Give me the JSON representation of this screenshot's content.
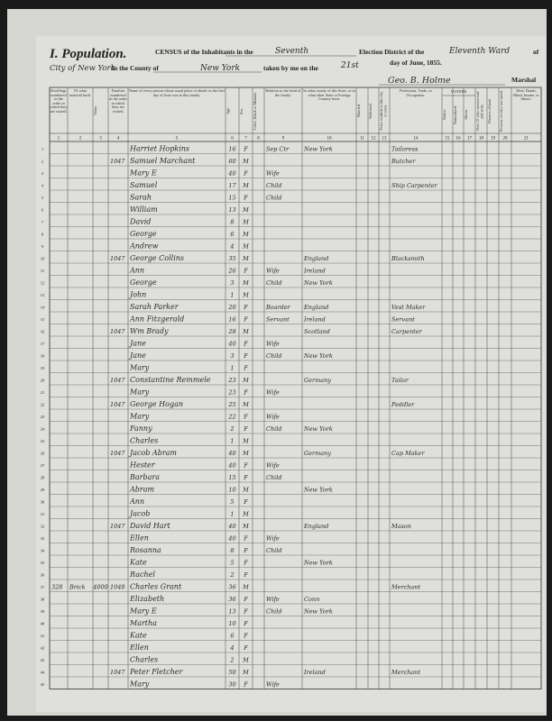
{
  "header": {
    "title": "I. Population.",
    "census_label": "CENSUS of the Inhabitants in the",
    "district": "Seventh",
    "district_label": "Election District of the",
    "ward": "Eleventh Ward",
    "of": "of",
    "city": "City of New York",
    "county_label": "in the County of",
    "county": "New York",
    "taken_label": "taken by me on the",
    "date_day": "21st",
    "date_label": "day of June, 1855.",
    "marshal_name": "Geo. B. Holme",
    "marshal_label": "Marshal"
  },
  "table": {
    "voters_label": "VOTERS",
    "columns": [
      {
        "num": 1,
        "heading": "Dwellings numbered in the order in which they are visited."
      },
      {
        "num": 2,
        "heading": "Of what material built."
      },
      {
        "num": 3,
        "heading": "Value."
      },
      {
        "num": 4,
        "heading": "Families numbered in the order in which they are visited."
      },
      {
        "num": 5,
        "heading": "Name of every person whose usual place of abode on the first day of June was in this family."
      },
      {
        "num": 6,
        "heading": "Age."
      },
      {
        "num": 7,
        "heading": "Sex."
      },
      {
        "num": 8,
        "heading": "Color. Black or Mulatto."
      },
      {
        "num": 9,
        "heading": "Relation to the head of the family."
      },
      {
        "num": 10,
        "heading": "In what county of this State, or in what other State or Foreign Country born."
      },
      {
        "num": 11,
        "heading": "Married."
      },
      {
        "num": 12,
        "heading": "Widowed."
      },
      {
        "num": 13,
        "heading": "Years resident in this city or town."
      },
      {
        "num": 14,
        "heading": "Profession, Trade, or Occupation."
      },
      {
        "num": 15,
        "heading": "Native."
      },
      {
        "num": 16,
        "heading": "Naturalized."
      },
      {
        "num": 17,
        "heading": "Aliens."
      },
      {
        "num": 18,
        "heading": "Over 21 who cannot read and write."
      },
      {
        "num": 19,
        "heading": "Owners of land."
      },
      {
        "num": 20,
        "heading": "Persons of color not taxed."
      },
      {
        "num": 21,
        "heading": "Deaf, Dumb, Blind, Insane, or Idiotic."
      }
    ],
    "rows": [
      {
        "n": 1,
        "name": "Harriet Hopkins",
        "age": "16",
        "sex": "F",
        "relation": "Sep Ctr",
        "born": "New York",
        "occupation": "Tailoress"
      },
      {
        "n": 2,
        "family": "1047",
        "name": "Samuel Marchant",
        "age": "60",
        "sex": "M",
        "occupation": "Butcher"
      },
      {
        "n": 3,
        "name": "Mary E",
        "age": "40",
        "sex": "F",
        "relation": "Wife"
      },
      {
        "n": 4,
        "name": "Samuel",
        "age": "17",
        "sex": "M",
        "relation": "Child",
        "occupation": "Ship Carpenter"
      },
      {
        "n": 5,
        "name": "Sarah",
        "age": "15",
        "sex": "F",
        "relation": "Child"
      },
      {
        "n": 6,
        "name": "William",
        "age": "13",
        "sex": "M"
      },
      {
        "n": 7,
        "name": "David",
        "age": "8",
        "sex": "M"
      },
      {
        "n": 8,
        "name": "George",
        "age": "6",
        "sex": "M"
      },
      {
        "n": 9,
        "name": "Andrew",
        "age": "4",
        "sex": "M"
      },
      {
        "n": 10,
        "family": "1047",
        "name": "George Collins",
        "age": "35",
        "sex": "M",
        "born": "England",
        "occupation": "Blacksmith"
      },
      {
        "n": 11,
        "name": "Ann",
        "age": "26",
        "sex": "F",
        "relation": "Wife",
        "born": "Ireland"
      },
      {
        "n": 12,
        "name": "George",
        "age": "3",
        "sex": "M",
        "relation": "Child",
        "born": "New York"
      },
      {
        "n": 13,
        "name": "John",
        "age": "1",
        "sex": "M"
      },
      {
        "n": 14,
        "name": "Sarah Parker",
        "age": "20",
        "sex": "F",
        "relation": "Boarder",
        "born": "England",
        "occupation": "Vest Maker"
      },
      {
        "n": 15,
        "name": "Ann Fitzgerald",
        "age": "16",
        "sex": "F",
        "relation": "Servant",
        "born": "Ireland",
        "occupation": "Servant"
      },
      {
        "n": 16,
        "family": "1047",
        "name": "Wm Brady",
        "age": "28",
        "sex": "M",
        "born": "Scotland",
        "occupation": "Carpenter"
      },
      {
        "n": 17,
        "name": "Jane",
        "age": "40",
        "sex": "F",
        "relation": "Wife"
      },
      {
        "n": 18,
        "name": "Jane",
        "age": "3",
        "sex": "F",
        "relation": "Child",
        "born": "New York"
      },
      {
        "n": 19,
        "name": "Mary",
        "age": "1",
        "sex": "F"
      },
      {
        "n": 20,
        "family": "1047",
        "name": "Constantine Remmele",
        "age": "23",
        "sex": "M",
        "born": "Germany",
        "occupation": "Tailor"
      },
      {
        "n": 21,
        "name": "Mary",
        "age": "23",
        "sex": "F",
        "relation": "Wife"
      },
      {
        "n": 22,
        "family": "1047",
        "name": "George Hogan",
        "age": "25",
        "sex": "M",
        "occupation": "Peddler"
      },
      {
        "n": 23,
        "name": "Mary",
        "age": "22",
        "sex": "F",
        "relation": "Wife"
      },
      {
        "n": 24,
        "name": "Fanny",
        "age": "2",
        "sex": "F",
        "relation": "Child",
        "born": "New York"
      },
      {
        "n": 25,
        "name": "Charles",
        "age": "1",
        "sex": "M"
      },
      {
        "n": 26,
        "family": "1047",
        "name": "Jacob Abram",
        "age": "40",
        "sex": "M",
        "born": "Germany",
        "occupation": "Cap Maker"
      },
      {
        "n": 27,
        "name": "Hester",
        "age": "40",
        "sex": "F",
        "relation": "Wife"
      },
      {
        "n": 28,
        "name": "Barbara",
        "age": "15",
        "sex": "F",
        "relation": "Child"
      },
      {
        "n": 29,
        "name": "Abram",
        "age": "10",
        "sex": "M",
        "born": "New York"
      },
      {
        "n": 30,
        "name": "Ann",
        "age": "5",
        "sex": "F"
      },
      {
        "n": 31,
        "name": "Jacob",
        "age": "1",
        "sex": "M"
      },
      {
        "n": 32,
        "family": "1047",
        "name": "David Hart",
        "age": "40",
        "sex": "M",
        "born": "England",
        "occupation": "Mason"
      },
      {
        "n": 33,
        "name": "Ellen",
        "age": "40",
        "sex": "F",
        "relation": "Wife"
      },
      {
        "n": 34,
        "name": "Rosanna",
        "age": "8",
        "sex": "F",
        "relation": "Child"
      },
      {
        "n": 35,
        "name": "Kate",
        "age": "5",
        "sex": "F",
        "born": "New York"
      },
      {
        "n": 36,
        "name": "Rachel",
        "age": "2",
        "sex": "F"
      },
      {
        "n": 37,
        "c1": "328",
        "c2": "Brick",
        "c3": "4000",
        "family": "1048",
        "name": "Charles Grant",
        "age": "36",
        "sex": "M",
        "occupation": "Merchant"
      },
      {
        "n": 38,
        "name": "Elizabeth",
        "age": "36",
        "sex": "F",
        "relation": "Wife",
        "born": "Conn"
      },
      {
        "n": 39,
        "name": "Mary E",
        "age": "13",
        "sex": "F",
        "relation": "Child",
        "born": "New York"
      },
      {
        "n": 40,
        "name": "Martha",
        "age": "10",
        "sex": "F"
      },
      {
        "n": 41,
        "name": "Kate",
        "age": "6",
        "sex": "F"
      },
      {
        "n": 42,
        "name": "Ellen",
        "age": "4",
        "sex": "F"
      },
      {
        "n": 43,
        "name": "Charles",
        "age": "2",
        "sex": "M"
      },
      {
        "n": 44,
        "family": "1047",
        "name": "Peter Fletcher",
        "age": "50",
        "sex": "M",
        "born": "Ireland",
        "occupation": "Merchant"
      },
      {
        "n": 45,
        "name": "Mary",
        "age": "30",
        "sex": "F",
        "relation": "Wife"
      }
    ]
  }
}
